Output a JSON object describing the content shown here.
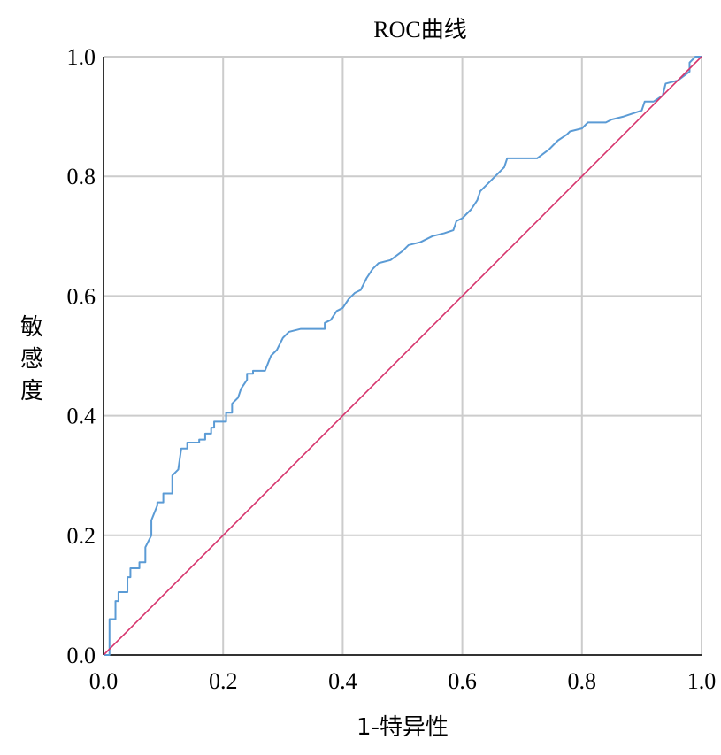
{
  "chart_data": {
    "type": "line",
    "title": "ROC曲线",
    "xlabel": "1-特异性",
    "ylabel": [
      "敏",
      "感",
      "度"
    ],
    "xlim": [
      0,
      1
    ],
    "ylim": [
      0,
      1
    ],
    "x_ticks": [
      "0.0",
      "0.2",
      "0.4",
      "0.6",
      "0.8",
      "1.0"
    ],
    "y_ticks": [
      "0.0",
      "0.2",
      "0.4",
      "0.6",
      "0.8",
      "1.0"
    ],
    "grid": true,
    "colors": {
      "roc": "#5b9bd5",
      "reference": "#d6336c",
      "grid": "#cccccc",
      "axis": "#333333"
    },
    "series": [
      {
        "values": [
          [
            0,
            0
          ],
          [
            0.01,
            0
          ],
          [
            0.01,
            0.06
          ],
          [
            0.02,
            0.06
          ],
          [
            0.02,
            0.09
          ],
          [
            0.025,
            0.09
          ],
          [
            0.025,
            0.105
          ],
          [
            0.04,
            0.105
          ],
          [
            0.04,
            0.13
          ],
          [
            0.045,
            0.13
          ],
          [
            0.045,
            0.145
          ],
          [
            0.06,
            0.145
          ],
          [
            0.06,
            0.155
          ],
          [
            0.07,
            0.155
          ],
          [
            0.07,
            0.18
          ],
          [
            0.08,
            0.2
          ],
          [
            0.08,
            0.225
          ],
          [
            0.09,
            0.25
          ],
          [
            0.09,
            0.255
          ],
          [
            0.1,
            0.255
          ],
          [
            0.1,
            0.27
          ],
          [
            0.115,
            0.27
          ],
          [
            0.115,
            0.3
          ],
          [
            0.125,
            0.31
          ],
          [
            0.13,
            0.345
          ],
          [
            0.14,
            0.345
          ],
          [
            0.14,
            0.355
          ],
          [
            0.16,
            0.355
          ],
          [
            0.16,
            0.36
          ],
          [
            0.17,
            0.36
          ],
          [
            0.17,
            0.37
          ],
          [
            0.18,
            0.37
          ],
          [
            0.18,
            0.38
          ],
          [
            0.185,
            0.38
          ],
          [
            0.185,
            0.39
          ],
          [
            0.205,
            0.39
          ],
          [
            0.205,
            0.405
          ],
          [
            0.215,
            0.405
          ],
          [
            0.215,
            0.42
          ],
          [
            0.225,
            0.43
          ],
          [
            0.23,
            0.445
          ],
          [
            0.24,
            0.46
          ],
          [
            0.24,
            0.47
          ],
          [
            0.25,
            0.47
          ],
          [
            0.25,
            0.475
          ],
          [
            0.27,
            0.475
          ],
          [
            0.28,
            0.5
          ],
          [
            0.29,
            0.51
          ],
          [
            0.295,
            0.52
          ],
          [
            0.3,
            0.53
          ],
          [
            0.31,
            0.54
          ],
          [
            0.33,
            0.545
          ],
          [
            0.37,
            0.545
          ],
          [
            0.37,
            0.555
          ],
          [
            0.38,
            0.56
          ],
          [
            0.39,
            0.575
          ],
          [
            0.4,
            0.58
          ],
          [
            0.41,
            0.595
          ],
          [
            0.42,
            0.605
          ],
          [
            0.43,
            0.61
          ],
          [
            0.44,
            0.63
          ],
          [
            0.45,
            0.645
          ],
          [
            0.46,
            0.655
          ],
          [
            0.48,
            0.66
          ],
          [
            0.5,
            0.675
          ],
          [
            0.51,
            0.685
          ],
          [
            0.53,
            0.69
          ],
          [
            0.55,
            0.7
          ],
          [
            0.57,
            0.705
          ],
          [
            0.585,
            0.71
          ],
          [
            0.59,
            0.725
          ],
          [
            0.6,
            0.73
          ],
          [
            0.61,
            0.74
          ],
          [
            0.615,
            0.745
          ],
          [
            0.625,
            0.76
          ],
          [
            0.63,
            0.775
          ],
          [
            0.645,
            0.79
          ],
          [
            0.66,
            0.805
          ],
          [
            0.67,
            0.815
          ],
          [
            0.675,
            0.83
          ],
          [
            0.725,
            0.83
          ],
          [
            0.745,
            0.845
          ],
          [
            0.76,
            0.86
          ],
          [
            0.775,
            0.87
          ],
          [
            0.78,
            0.875
          ],
          [
            0.8,
            0.88
          ],
          [
            0.81,
            0.89
          ],
          [
            0.84,
            0.89
          ],
          [
            0.85,
            0.895
          ],
          [
            0.87,
            0.9
          ],
          [
            0.9,
            0.91
          ],
          [
            0.905,
            0.925
          ],
          [
            0.92,
            0.925
          ],
          [
            0.935,
            0.935
          ],
          [
            0.94,
            0.955
          ],
          [
            0.96,
            0.96
          ],
          [
            0.98,
            0.975
          ],
          [
            0.98,
            0.99
          ],
          [
            0.99,
            1.0
          ],
          [
            1.0,
            1.0
          ]
        ]
      },
      {
        "values": [
          [
            0,
            0
          ],
          [
            1,
            1
          ]
        ]
      }
    ]
  }
}
